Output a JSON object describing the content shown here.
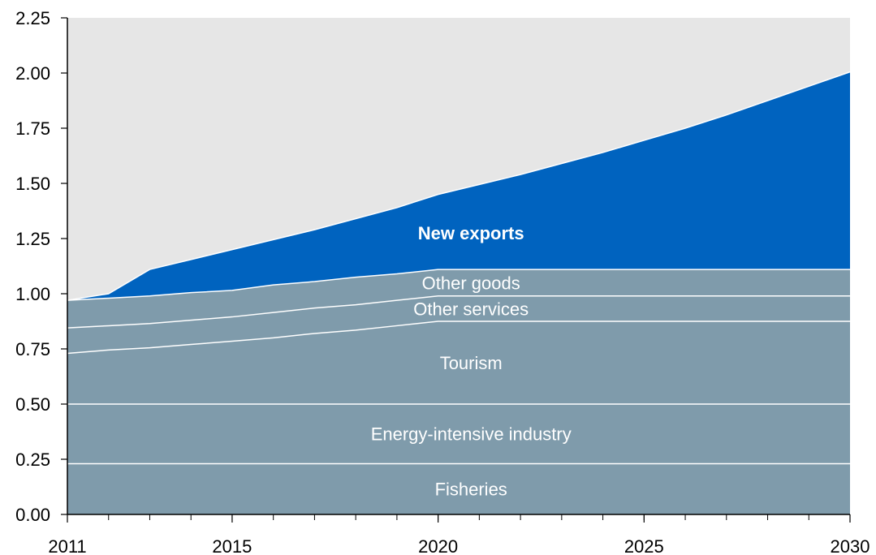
{
  "chart_data": {
    "type": "area",
    "stacked": true,
    "x": [
      2011,
      2012,
      2013,
      2014,
      2015,
      2016,
      2017,
      2018,
      2019,
      2020,
      2021,
      2022,
      2023,
      2024,
      2025,
      2026,
      2027,
      2028,
      2029,
      2030
    ],
    "xlim": [
      2011,
      2030
    ],
    "ylim": [
      0,
      2.25
    ],
    "xticks": [
      "2011",
      "2015",
      "2020",
      "2025",
      "2030"
    ],
    "yticks": [
      "0.00",
      "0.25",
      "0.50",
      "0.75",
      "1.00",
      "1.25",
      "1.50",
      "1.75",
      "2.00",
      "2.25"
    ],
    "series": [
      {
        "name": "Fisheries",
        "color": "#7f9bab",
        "values": [
          0.23,
          0.23,
          0.23,
          0.23,
          0.23,
          0.23,
          0.23,
          0.23,
          0.23,
          0.23,
          0.23,
          0.23,
          0.23,
          0.23,
          0.23,
          0.23,
          0.23,
          0.23,
          0.23,
          0.23
        ]
      },
      {
        "name": "Energy-intensive industry",
        "color": "#7f9bab",
        "values": [
          0.27,
          0.27,
          0.27,
          0.27,
          0.27,
          0.27,
          0.27,
          0.27,
          0.27,
          0.27,
          0.27,
          0.27,
          0.27,
          0.27,
          0.27,
          0.27,
          0.27,
          0.27,
          0.27,
          0.27
        ]
      },
      {
        "name": "Tourism",
        "color": "#7f9bab",
        "values": [
          0.23,
          0.245,
          0.255,
          0.27,
          0.285,
          0.3,
          0.32,
          0.335,
          0.355,
          0.375,
          0.375,
          0.375,
          0.375,
          0.375,
          0.375,
          0.375,
          0.375,
          0.375,
          0.375,
          0.375
        ]
      },
      {
        "name": "Other services",
        "color": "#7f9bab",
        "values": [
          0.115,
          0.11,
          0.11,
          0.11,
          0.11,
          0.115,
          0.115,
          0.115,
          0.115,
          0.115,
          0.115,
          0.115,
          0.115,
          0.115,
          0.115,
          0.115,
          0.115,
          0.115,
          0.115,
          0.115
        ]
      },
      {
        "name": "Other goods",
        "color": "#7f9bab",
        "values": [
          0.125,
          0.125,
          0.125,
          0.125,
          0.12,
          0.125,
          0.12,
          0.125,
          0.12,
          0.12,
          0.12,
          0.12,
          0.12,
          0.12,
          0.12,
          0.12,
          0.12,
          0.12,
          0.12,
          0.12
        ]
      },
      {
        "name": "New exports",
        "color": "#0063bf",
        "values": [
          0.0,
          0.02,
          0.12,
          0.15,
          0.185,
          0.205,
          0.235,
          0.265,
          0.3,
          0.34,
          0.385,
          0.43,
          0.48,
          0.53,
          0.585,
          0.64,
          0.7,
          0.765,
          0.83,
          0.895
        ]
      }
    ],
    "background_color": "#e6e6e6",
    "grid": false
  }
}
